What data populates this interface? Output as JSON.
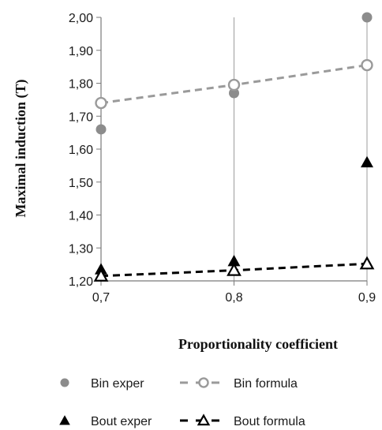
{
  "chart_data": {
    "type": "scatter",
    "xlabel": "Proportionality coefficient",
    "ylabel": "Maximal induction (T)",
    "x_ticks": [
      "0,7",
      "0,8",
      "0,9"
    ],
    "y_ticks": [
      "1,20",
      "1,30",
      "1,40",
      "1,50",
      "1,60",
      "1,70",
      "1,80",
      "1,90",
      "2,00"
    ],
    "xlim": [
      0.7,
      0.9
    ],
    "ylim": [
      1.2,
      2.0
    ],
    "grid": "vertical",
    "legend_position": "bottom",
    "series": [
      {
        "name": "Bin exper",
        "kind": "markers",
        "marker": "filled-circle",
        "color": "#8c8c8c",
        "x": [
          0.7,
          0.8,
          0.9
        ],
        "y": [
          1.66,
          1.77,
          2.0
        ]
      },
      {
        "name": "Bin formula",
        "kind": "dashed-line-markers",
        "marker": "open-circle",
        "color": "#9a9a9a",
        "x": [
          0.7,
          0.8,
          0.9
        ],
        "y": [
          1.74,
          1.795,
          1.855
        ]
      },
      {
        "name": "Bout exper",
        "kind": "markers",
        "marker": "filled-triangle",
        "color": "#000000",
        "x": [
          0.7,
          0.8,
          0.9
        ],
        "y": [
          1.235,
          1.26,
          1.56
        ]
      },
      {
        "name": "Bout formula",
        "kind": "dashed-line-markers",
        "marker": "open-triangle",
        "color": "#000000",
        "x": [
          0.7,
          0.8,
          0.9
        ],
        "y": [
          1.215,
          1.232,
          1.252
        ]
      }
    ]
  }
}
